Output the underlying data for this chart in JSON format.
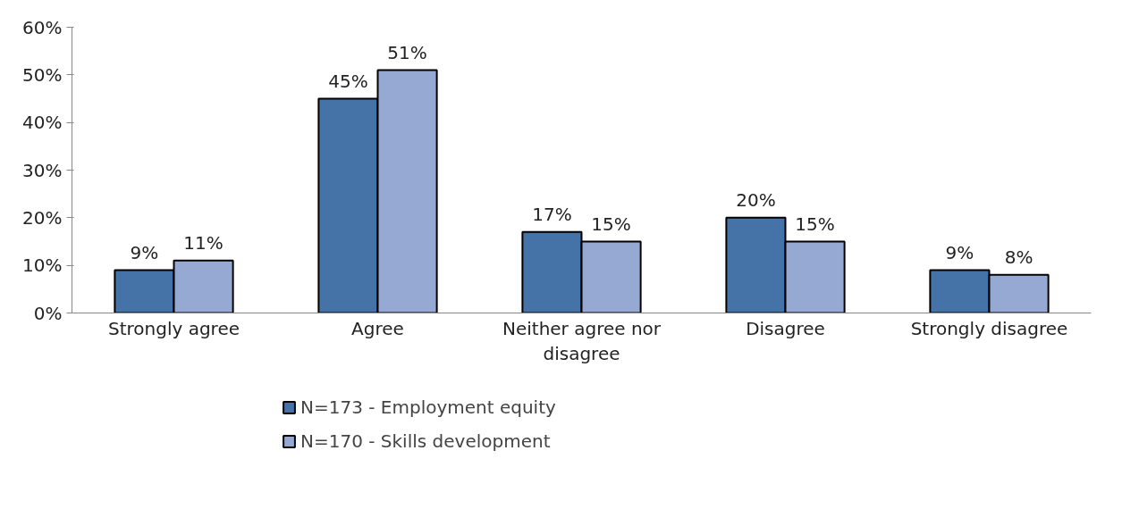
{
  "chart_data": {
    "type": "bar",
    "categories": [
      "Strongly agree",
      "Agree",
      "Neither agree nor disagree",
      "Disagree",
      "Strongly disagree"
    ],
    "series": [
      {
        "name": "N=173 - Employment equity",
        "color": "#4572a7",
        "values": [
          9,
          45,
          17,
          20,
          9
        ],
        "value_labels": [
          "9%",
          "45%",
          "17%",
          "20%",
          "9%"
        ]
      },
      {
        "name": "N=170 - Skills development",
        "color": "#95a9d3",
        "values": [
          11,
          51,
          15,
          15,
          8
        ],
        "value_labels": [
          "11%",
          "51%",
          "15%",
          "15%",
          "8%"
        ]
      }
    ],
    "ylim": [
      0,
      60
    ],
    "yticks": [
      {
        "value": 0,
        "label": "0%"
      },
      {
        "value": 10,
        "label": "10%"
      },
      {
        "value": 20,
        "label": "20%"
      },
      {
        "value": 30,
        "label": "30%"
      },
      {
        "value": 40,
        "label": "40%"
      },
      {
        "value": 50,
        "label": "50%"
      },
      {
        "value": 60,
        "label": "60%"
      }
    ],
    "grid": false,
    "legend": "bottom left"
  }
}
